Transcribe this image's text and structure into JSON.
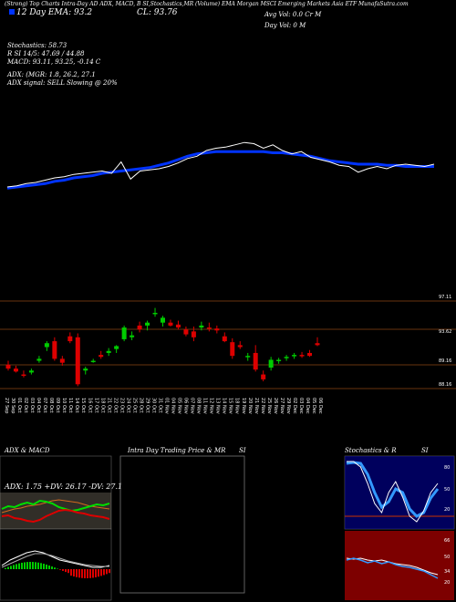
{
  "header": {
    "top_row": "(Strong) Top Charts Intra-Day AD ADX, MACD, B  SI,Stochastics,MR  (Volume) EMA  Morgan MSCI Emerging Markets Asia ETF MunafaSutra.com",
    "ema_label": "12 Day EMA",
    "ema_value": "93.2",
    "cl_label": "CL: 93.76",
    "avg_vol": "Avg Vol: 0.0 Cr  M",
    "day_vol": "Day Vol: 0  M"
  },
  "indicators": {
    "stochastics": "Stochastics: 58.73",
    "r_si": "R  SI 14/5: 47.69 / 44.88",
    "macd": "MACD: 93.11, 93.25, -0.14  C",
    "adx": "ADX: (MGR: 1.8, 26.2, 27.1",
    "adx_signal": "ADX  signal: SELL  Slowing @ 20%"
  },
  "price_levels": [
    "97.11",
    "93.62",
    "89.16",
    "88.16"
  ],
  "date_labels": [
    "27 Sep",
    "30 Sep",
    "01 Oct",
    "02 Oct",
    "03 Oct",
    "04 Oct",
    "07 Oct",
    "08 Oct",
    "09 Oct",
    "10 Oct",
    "11 Oct",
    "14 Oct",
    "15 Oct",
    "16 Oct",
    "17 Oct",
    "18 Oct",
    "21 Oct",
    "22 Oct",
    "23 Oct",
    "24 Oct",
    "25 Oct",
    "28 Oct",
    "29 Oct",
    "30 Oct",
    "31 Oct",
    "01 Nov",
    "04 Nov",
    "05 Nov",
    "06 Nov",
    "07 Nov",
    "08 Nov",
    "11 Nov",
    "12 Nov",
    "13 Nov",
    "14 Nov",
    "15 Nov",
    "18 Nov",
    "19 Nov",
    "20 Nov",
    "21 Nov",
    "22 Nov",
    "25 Nov",
    "26 Nov",
    "27 Nov",
    "29 Nov",
    "02 Dec",
    "03 Dec",
    "04 Dec",
    "05 Dec",
    "06 Dec"
  ],
  "panels": {
    "adx_title": "ADX  & MACD",
    "adx_values": "ADX: 1.75  +DV: 26.17  -DV: 27.1",
    "intraday_title": "Intra  Day Trading Price  & MR",
    "intraday_si": "SI",
    "stoch_title": "Stochastics & R",
    "stoch_si": "SI",
    "stoch_levels": [
      "80",
      "50",
      "20"
    ],
    "rsi_levels": [
      "66",
      "50",
      "34",
      "20"
    ]
  },
  "colors": {
    "up": "#00cc00",
    "down": "#dd0000",
    "ema": "#0033ff",
    "price_line": "#ffffff",
    "level_line": "#8b4513"
  },
  "chart_data": {
    "type": "candlestick",
    "price_line": [
      90.8,
      90.9,
      91.1,
      91.2,
      91.4,
      91.6,
      91.7,
      91.9,
      92.0,
      92.1,
      92.2,
      92.0,
      93.0,
      91.5,
      92.2,
      92.3,
      92.4,
      92.6,
      92.9,
      93.3,
      93.5,
      94.0,
      94.2,
      94.3,
      94.5,
      94.7,
      94.6,
      94.2,
      94.5,
      94.0,
      93.7,
      93.9,
      93.4,
      93.2,
      93.0,
      92.7,
      92.6,
      92.1,
      92.4,
      92.6,
      92.4,
      92.7,
      92.8,
      92.7,
      92.6,
      92.8
    ],
    "ema_line": [
      90.7,
      90.8,
      90.9,
      91.0,
      91.1,
      91.3,
      91.4,
      91.6,
      91.7,
      91.8,
      92.0,
      92.1,
      92.2,
      92.3,
      92.4,
      92.5,
      92.7,
      92.9,
      93.2,
      93.5,
      93.7,
      93.8,
      93.9,
      93.9,
      93.9,
      93.9,
      93.9,
      93.9,
      93.8,
      93.8,
      93.7,
      93.6,
      93.5,
      93.3,
      93.1,
      93.0,
      92.9,
      92.8,
      92.8,
      92.8,
      92.7,
      92.7,
      92.6,
      92.6,
      92.6,
      92.6
    ],
    "candles": [
      {
        "o": 90.6,
        "h": 91.0,
        "l": 90.0,
        "c": 90.2
      },
      {
        "o": 90.2,
        "h": 90.5,
        "l": 89.8,
        "c": 89.9
      },
      {
        "o": 89.6,
        "h": 90.0,
        "l": 89.3,
        "c": 89.5
      },
      {
        "o": 89.8,
        "h": 90.2,
        "l": 89.6,
        "c": 90.0
      },
      {
        "o": 91.0,
        "h": 91.5,
        "l": 90.8,
        "c": 91.2
      },
      {
        "o": 92.4,
        "h": 93.0,
        "l": 92.0,
        "c": 92.8
      },
      {
        "o": 93.0,
        "h": 93.4,
        "l": 91.0,
        "c": 91.2
      },
      {
        "o": 91.2,
        "h": 91.5,
        "l": 90.5,
        "c": 90.8
      },
      {
        "o": 93.5,
        "h": 93.9,
        "l": 92.8,
        "c": 93.0
      },
      {
        "o": 93.4,
        "h": 93.8,
        "l": 88.4,
        "c": 88.6
      },
      {
        "o": 90.0,
        "h": 90.4,
        "l": 89.6,
        "c": 90.2
      },
      {
        "o": 91.0,
        "h": 91.2,
        "l": 90.8,
        "c": 91.0
      },
      {
        "o": 91.6,
        "h": 92.0,
        "l": 91.2,
        "c": 91.4
      },
      {
        "o": 91.8,
        "h": 92.3,
        "l": 91.5,
        "c": 92.0
      },
      {
        "o": 92.2,
        "h": 92.6,
        "l": 91.8,
        "c": 92.5
      },
      {
        "o": 93.2,
        "h": 94.6,
        "l": 93.0,
        "c": 94.4
      },
      {
        "o": 93.4,
        "h": 94.0,
        "l": 93.1,
        "c": 93.6
      },
      {
        "o": 94.6,
        "h": 95.0,
        "l": 93.9,
        "c": 94.2
      },
      {
        "o": 94.6,
        "h": 95.1,
        "l": 94.1,
        "c": 94.9
      },
      {
        "o": 95.8,
        "h": 96.4,
        "l": 95.5,
        "c": 95.9
      },
      {
        "o": 94.9,
        "h": 95.6,
        "l": 94.5,
        "c": 95.4
      },
      {
        "o": 94.9,
        "h": 95.2,
        "l": 94.5,
        "c": 94.6
      },
      {
        "o": 94.7,
        "h": 95.1,
        "l": 94.2,
        "c": 94.4
      },
      {
        "o": 94.2,
        "h": 94.5,
        "l": 93.5,
        "c": 93.7
      },
      {
        "o": 94.0,
        "h": 94.5,
        "l": 93.0,
        "c": 93.4
      },
      {
        "o": 94.4,
        "h": 95.0,
        "l": 94.1,
        "c": 94.6
      },
      {
        "o": 94.4,
        "h": 94.9,
        "l": 94.0,
        "c": 94.3
      },
      {
        "o": 94.3,
        "h": 94.6,
        "l": 93.8,
        "c": 94.1
      },
      {
        "o": 93.5,
        "h": 93.9,
        "l": 92.9,
        "c": 93.0
      },
      {
        "o": 92.9,
        "h": 93.3,
        "l": 91.2,
        "c": 91.5
      },
      {
        "o": 92.6,
        "h": 93.0,
        "l": 92.2,
        "c": 92.4
      },
      {
        "o": 91.4,
        "h": 91.8,
        "l": 91.0,
        "c": 91.5
      },
      {
        "o": 91.8,
        "h": 92.6,
        "l": 89.9,
        "c": 90.1
      },
      {
        "o": 89.6,
        "h": 90.0,
        "l": 88.9,
        "c": 89.1
      },
      {
        "o": 90.3,
        "h": 91.4,
        "l": 90.0,
        "c": 91.1
      },
      {
        "o": 91.0,
        "h": 91.3,
        "l": 90.7,
        "c": 91.1
      },
      {
        "o": 91.3,
        "h": 91.6,
        "l": 91.0,
        "c": 91.4
      },
      {
        "o": 91.5,
        "h": 91.8,
        "l": 91.2,
        "c": 91.6
      },
      {
        "o": 91.6,
        "h": 91.9,
        "l": 91.3,
        "c": 91.5
      },
      {
        "o": 91.8,
        "h": 92.1,
        "l": 91.4,
        "c": 91.5
      },
      {
        "o": 92.8,
        "h": 93.4,
        "l": 92.5,
        "c": 92.6
      }
    ]
  }
}
